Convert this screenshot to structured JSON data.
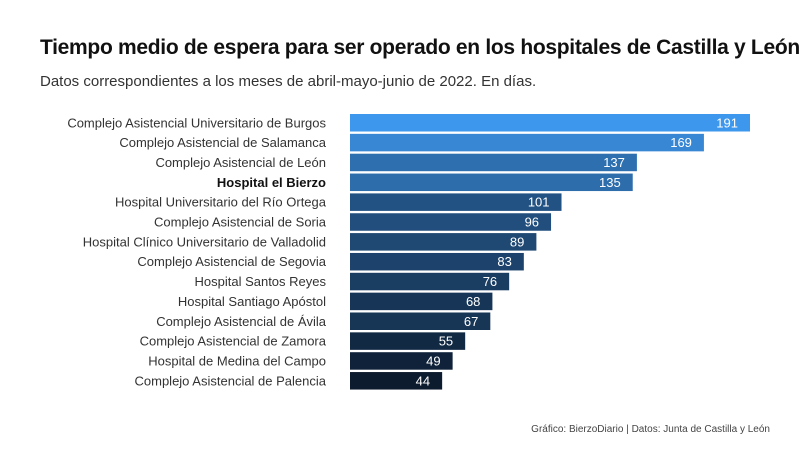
{
  "header": {
    "title": "Tiempo medio de espera para ser operado en los hospitales de Castilla y León",
    "subtitle": "Datos correspondientes a los meses de abril-mayo-junio de 2022. En días."
  },
  "footer": {
    "source": "Gráfico: BierzoDiario | Datos: Junta de Castilla y León"
  },
  "chart_data": {
    "type": "bar",
    "orientation": "horizontal",
    "title": "Tiempo medio de espera para ser operado en los hospitales de Castilla y León",
    "subtitle": "Datos correspondientes a los meses de abril-mayo-junio de 2022. En días.",
    "xlabel": "",
    "ylabel": "",
    "grid": false,
    "legend": "none",
    "highlight": "Hospital el Bierzo",
    "xlim": [
      0,
      191
    ],
    "categories": [
      "Complejo Asistencial Universitario de Burgos",
      "Complejo Asistencial de Salamanca",
      "Complejo Asistencial de León",
      "Hospital el Bierzo",
      "Hospital Universitario del Río Ortega",
      "Complejo Asistencial de Soria",
      "Hospital Clínico Universitario de Valladolid",
      "Complejo Asistencial de Segovia",
      "Hospital Santos Reyes",
      "Hospital Santiago Apóstol",
      "Complejo Asistencial de Ávila",
      "Complejo Asistencial de Zamora",
      "Hospital de Medina del Campo",
      "Complejo Asistencial de Palencia"
    ],
    "values": [
      191,
      169,
      137,
      135,
      101,
      96,
      89,
      83,
      76,
      68,
      67,
      55,
      49,
      44
    ],
    "colors": {
      "max": "#3d97ec",
      "min": "#0d1b2e"
    }
  }
}
